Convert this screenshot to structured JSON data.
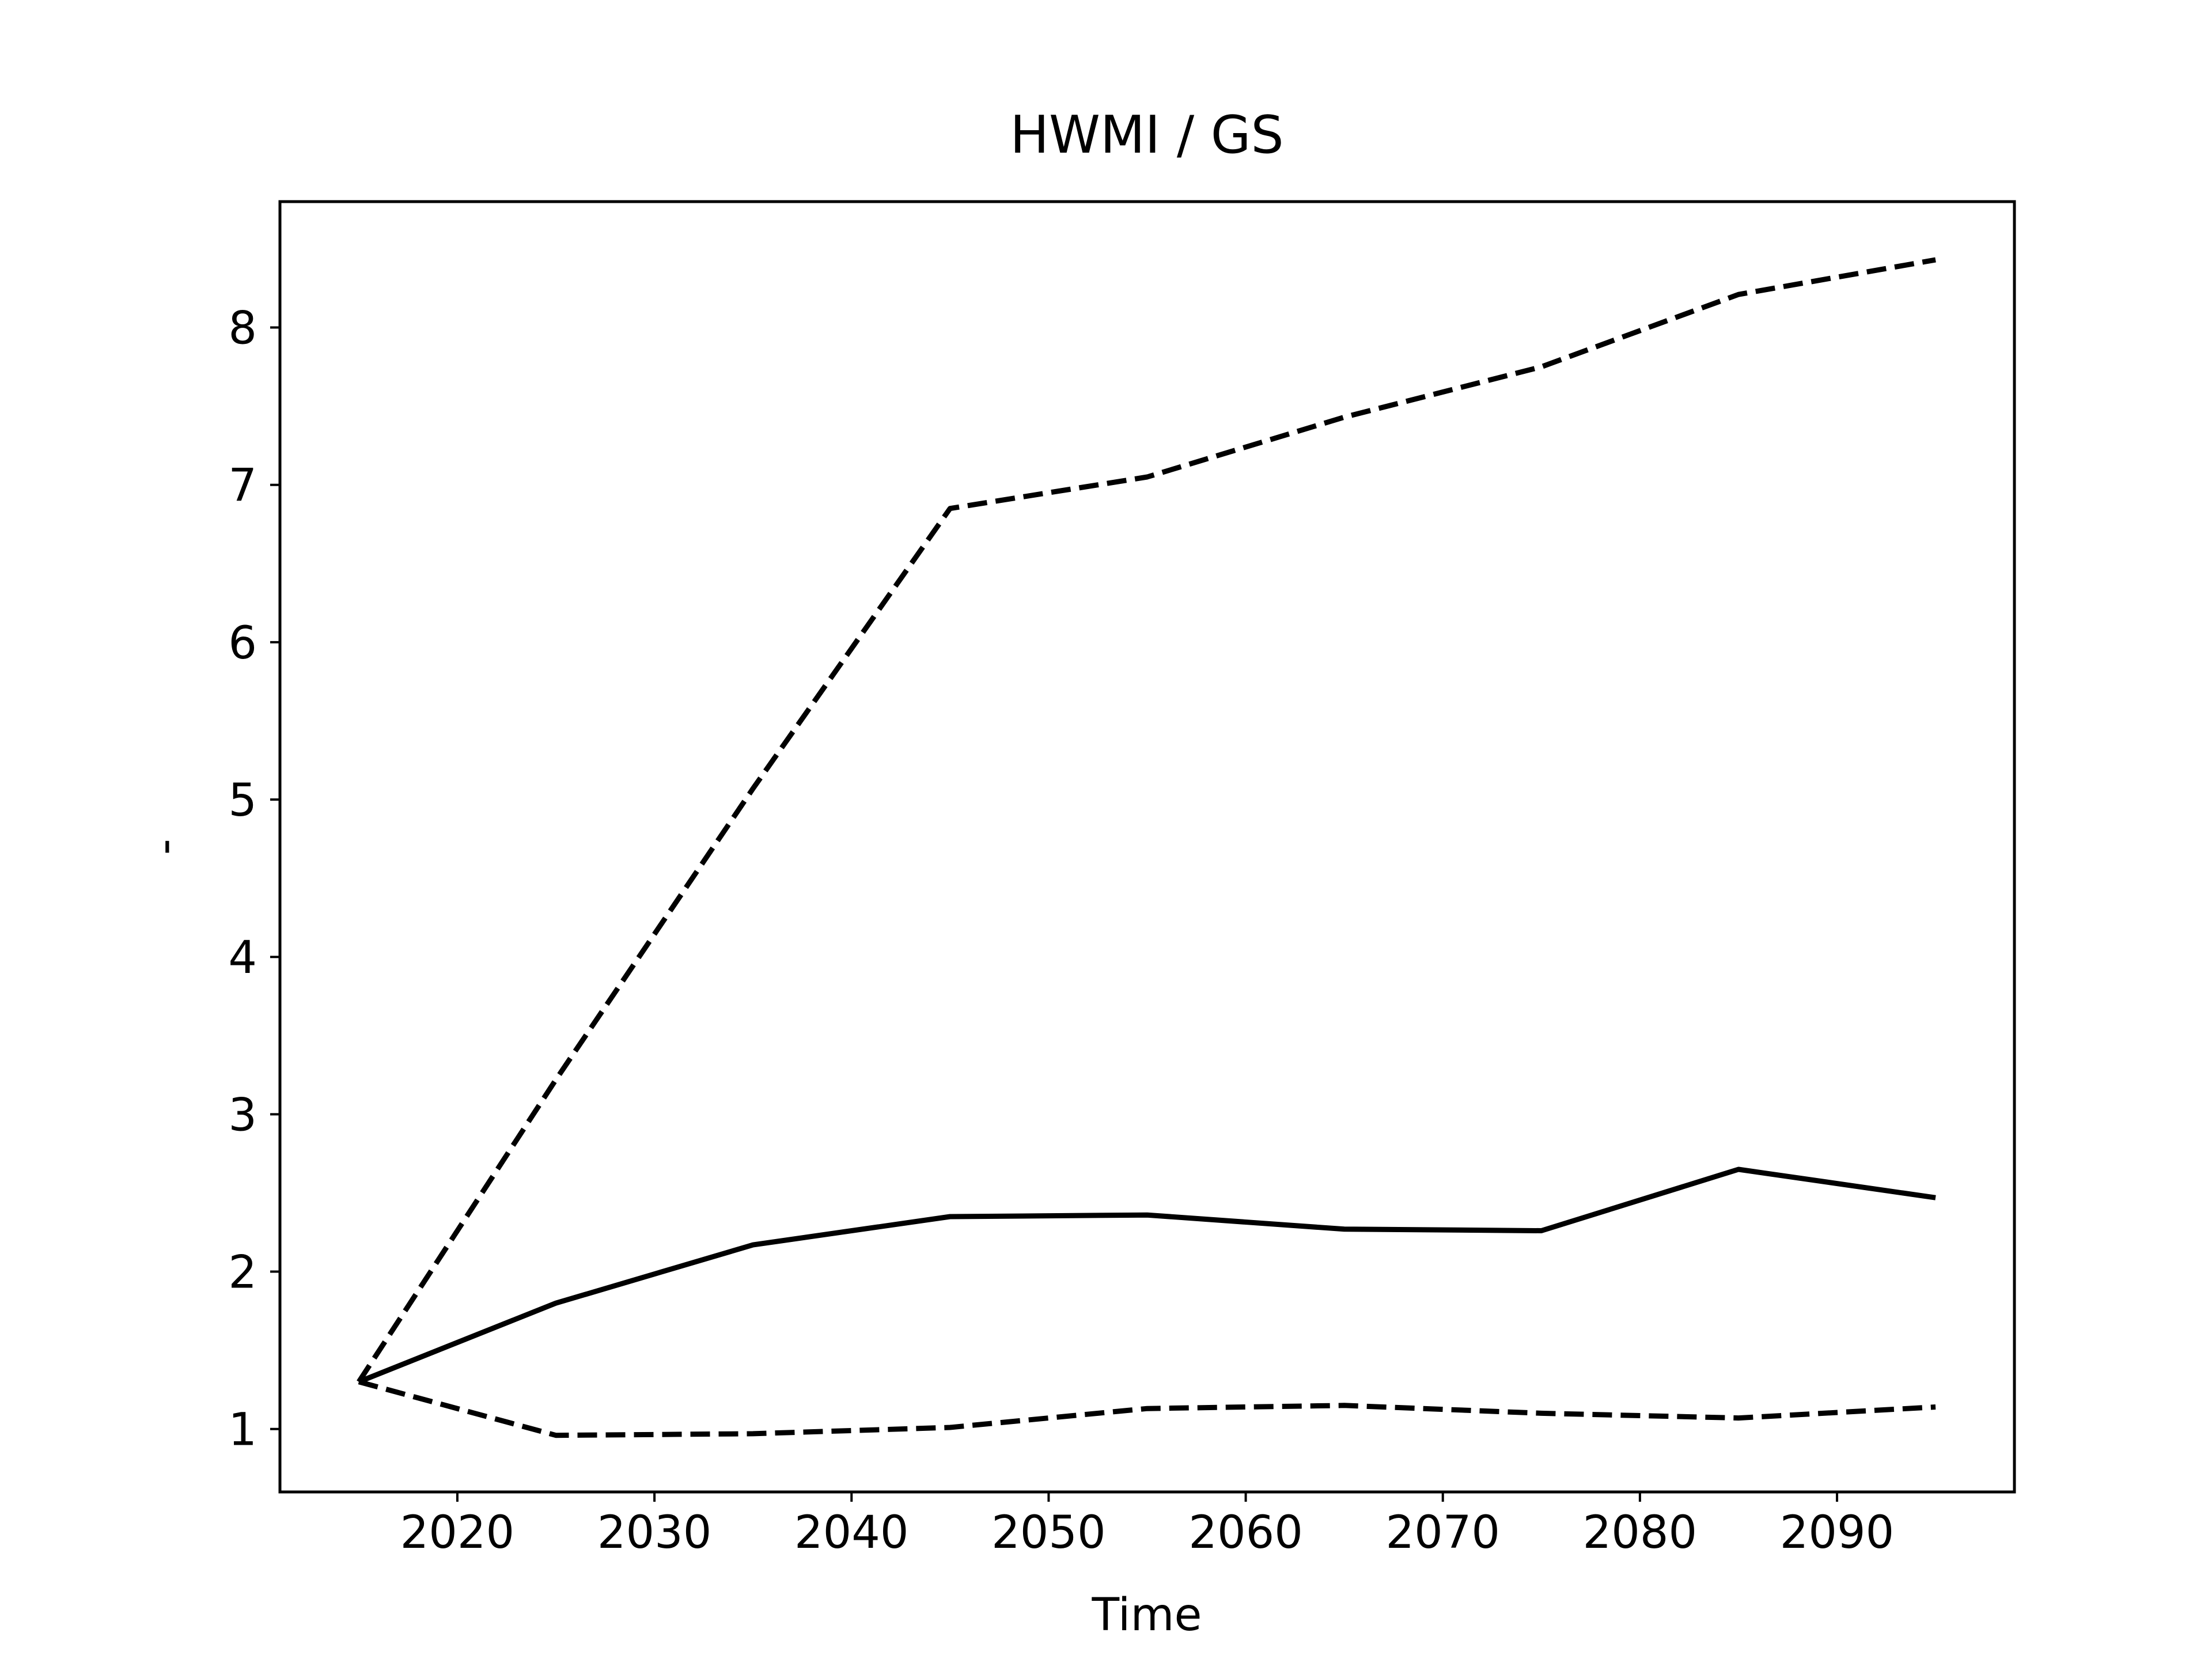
{
  "chart_data": {
    "type": "line",
    "title": "HWMI / GS",
    "xlabel": "Time",
    "ylabel": "-",
    "xlim": [
      2011,
      2099
    ],
    "ylim": [
      0.6,
      8.8
    ],
    "xticks": [
      2020,
      2030,
      2040,
      2050,
      2060,
      2070,
      2080,
      2090
    ],
    "yticks": [
      1,
      2,
      3,
      4,
      5,
      6,
      7,
      8
    ],
    "grid": false,
    "legend": "none",
    "x": [
      2015,
      2025,
      2035,
      2045,
      2055,
      2065,
      2075,
      2085,
      2095
    ],
    "series": [
      {
        "style": "solid",
        "color": "#000000",
        "values": [
          1.3,
          1.8,
          2.17,
          2.35,
          2.36,
          2.27,
          2.26,
          2.65,
          2.47
        ]
      },
      {
        "style": "dashed",
        "color": "#000000",
        "values": [
          1.3,
          3.22,
          5.07,
          6.85,
          7.05,
          7.43,
          7.75,
          8.21,
          8.43
        ]
      },
      {
        "style": "dashed",
        "color": "#000000",
        "values": [
          1.3,
          0.96,
          0.97,
          1.01,
          1.13,
          1.15,
          1.1,
          1.07,
          1.14
        ]
      }
    ]
  }
}
